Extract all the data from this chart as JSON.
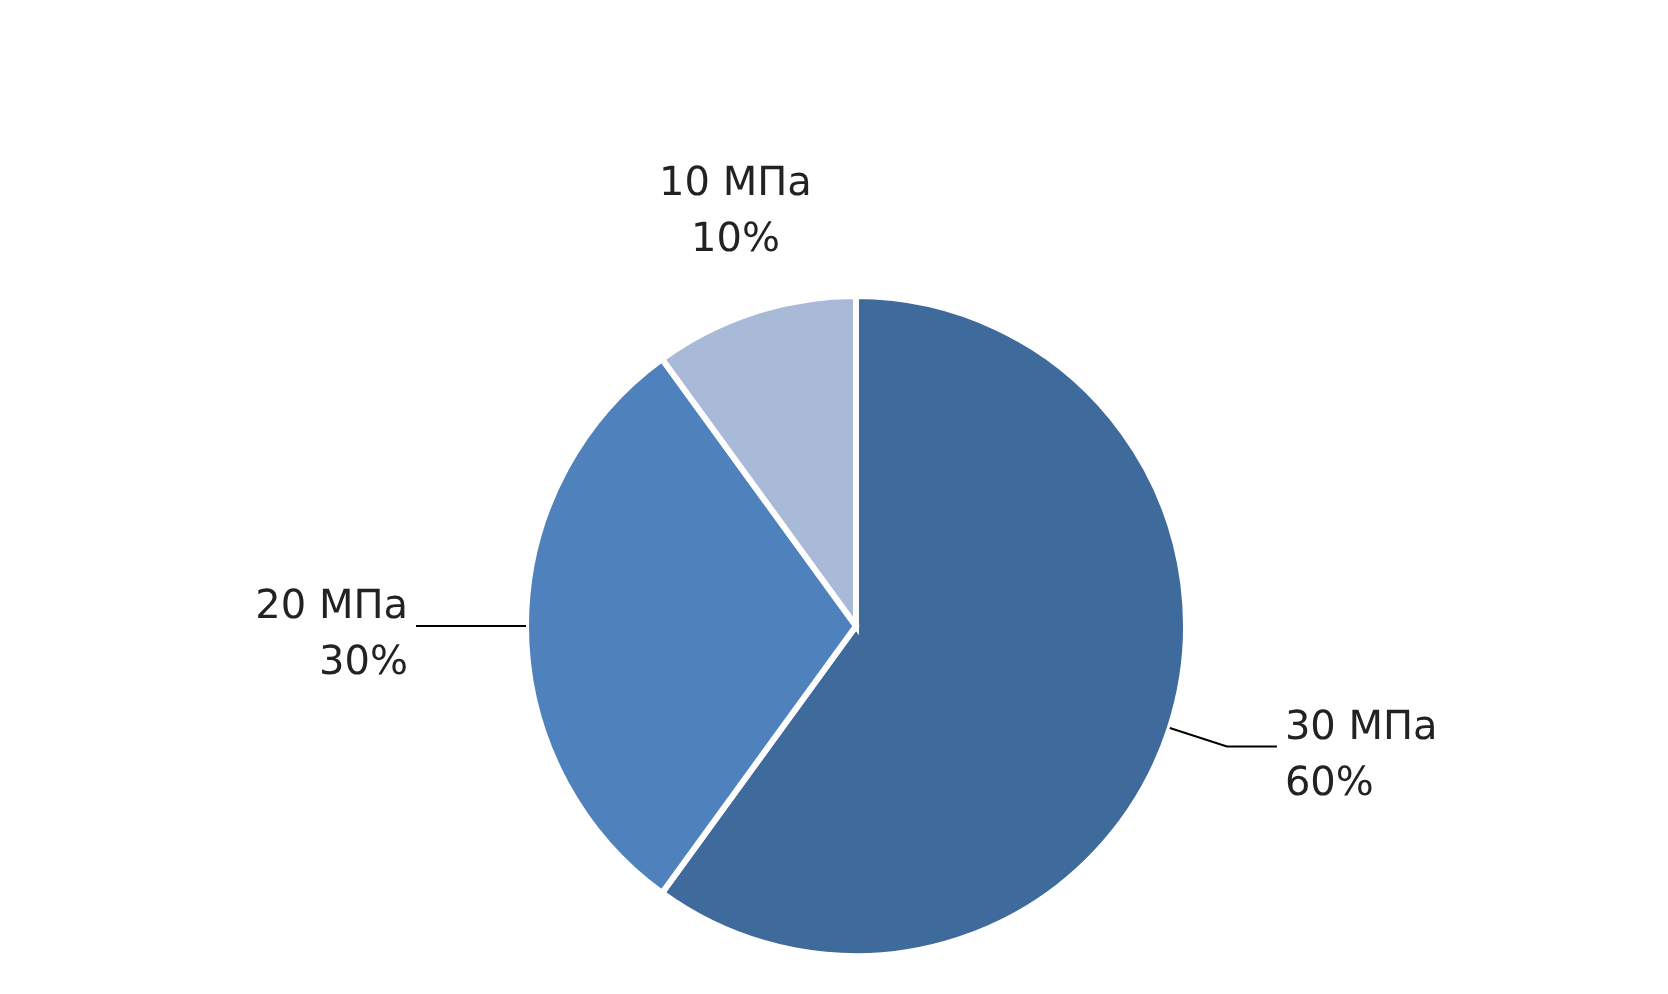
{
  "chart_data": {
    "type": "pie",
    "categories": [
      "30 МПа",
      "20 МПа",
      "10 МПа"
    ],
    "values": [
      60,
      30,
      10
    ],
    "value_labels": [
      "60%",
      "30%",
      "10%"
    ],
    "colors": [
      "#3f6a9c",
      "#4f81bd",
      "#a9b9d8"
    ]
  }
}
